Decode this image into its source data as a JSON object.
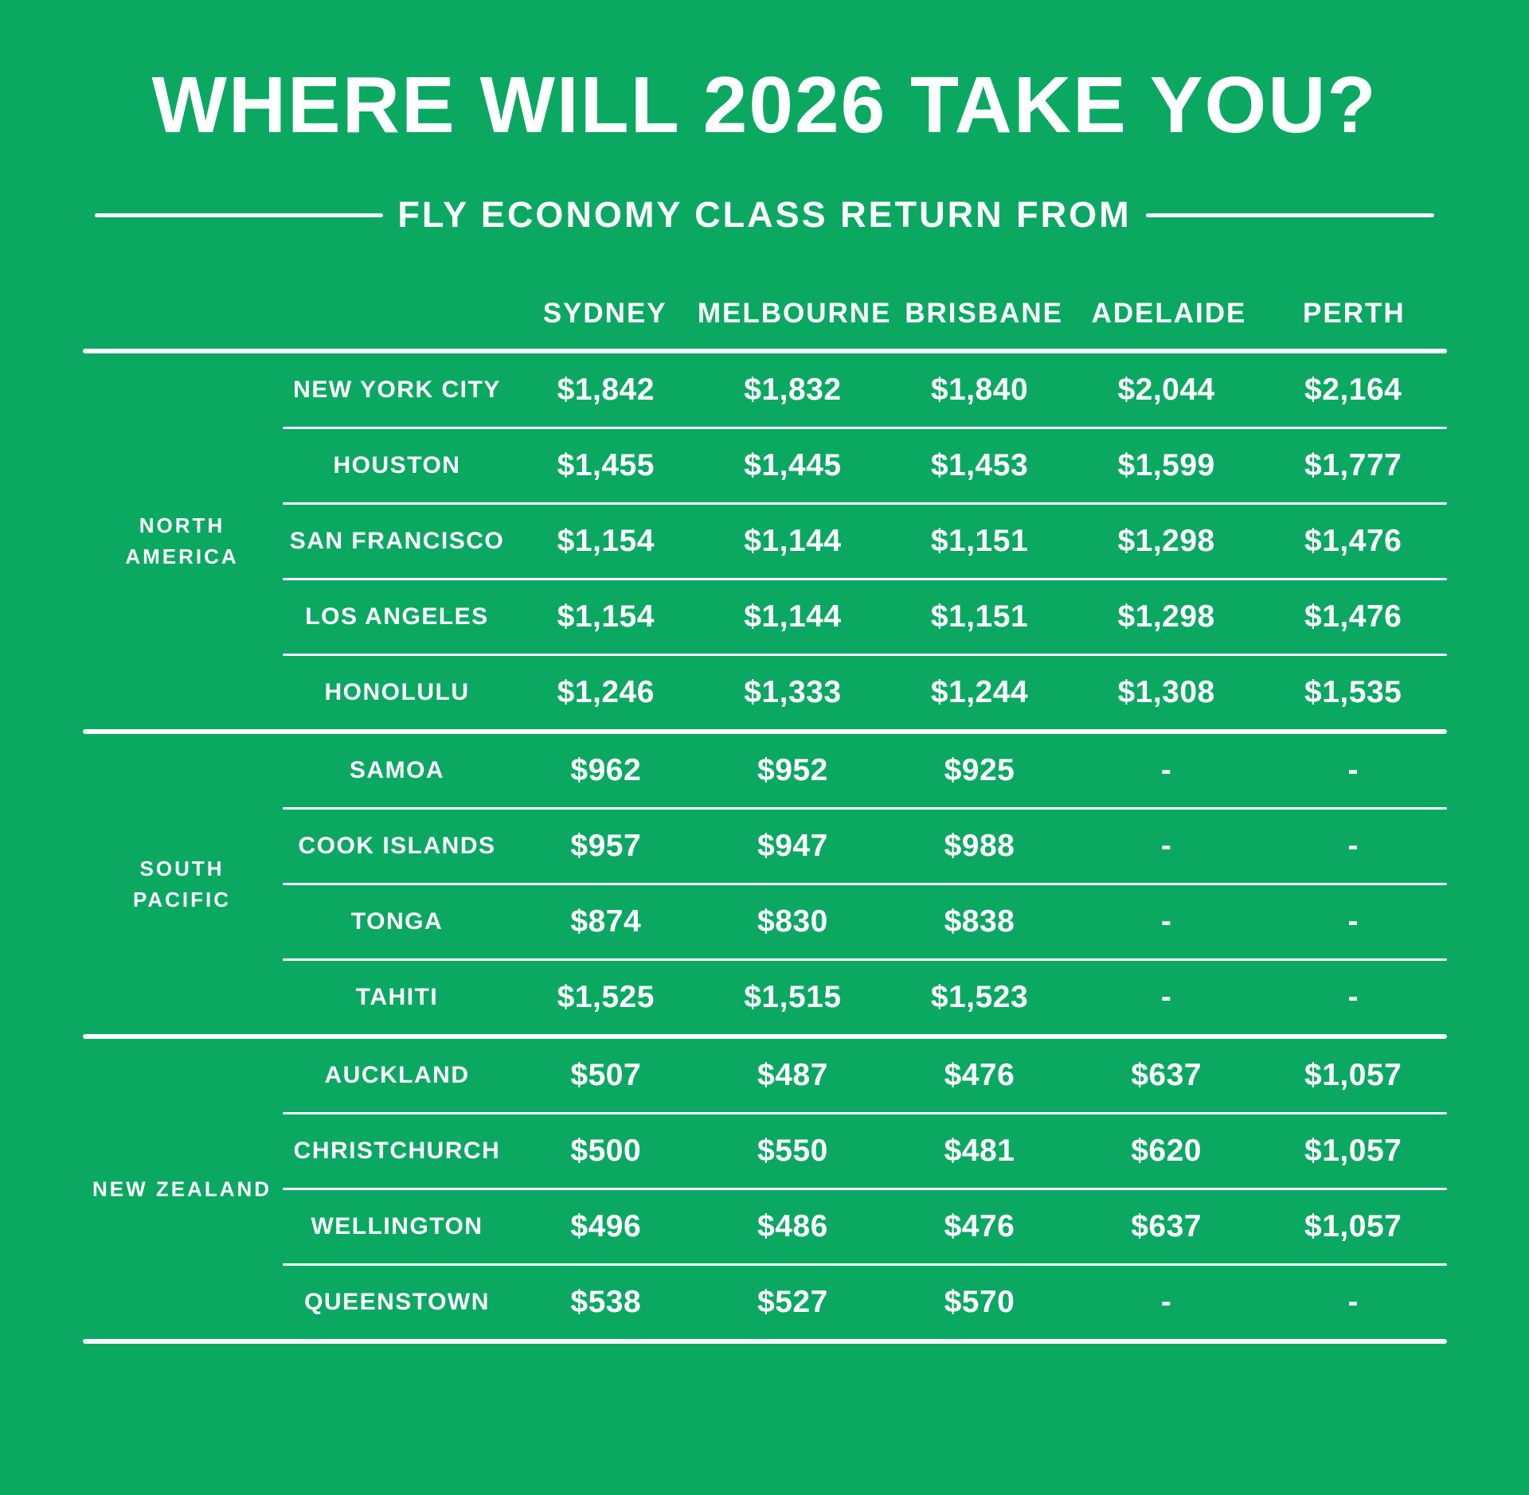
{
  "title": "WHERE WILL 2026 TAKE YOU?",
  "subtitle": "FLY ECONOMY CLASS RETURN FROM",
  "colors": {
    "background": "#0BA862",
    "text": "#FFFFFF",
    "line": "#FFFFFF"
  },
  "table": {
    "origin_columns": [
      "SYDNEY",
      "MELBOURNE",
      "BRISBANE",
      "ADELAIDE",
      "PERTH"
    ],
    "empty_value": "-",
    "groups": [
      {
        "region": "NORTH AMERICA",
        "region_lines": [
          "NORTH",
          "AMERICA"
        ],
        "rows": [
          {
            "destination": "NEW YORK CITY",
            "prices": [
              "$1,842",
              "$1,832",
              "$1,840",
              "$2,044",
              "$2,164"
            ]
          },
          {
            "destination": "HOUSTON",
            "prices": [
              "$1,455",
              "$1,445",
              "$1,453",
              "$1,599",
              "$1,777"
            ]
          },
          {
            "destination": "SAN FRANCISCO",
            "prices": [
              "$1,154",
              "$1,144",
              "$1,151",
              "$1,298",
              "$1,476"
            ]
          },
          {
            "destination": "LOS ANGELES",
            "prices": [
              "$1,154",
              "$1,144",
              "$1,151",
              "$1,298",
              "$1,476"
            ]
          },
          {
            "destination": "HONOLULU",
            "prices": [
              "$1,246",
              "$1,333",
              "$1,244",
              "$1,308",
              "$1,535"
            ]
          }
        ]
      },
      {
        "region": "SOUTH PACIFIC",
        "region_lines": [
          "SOUTH",
          "PACIFIC"
        ],
        "rows": [
          {
            "destination": "SAMOA",
            "prices": [
              "$962",
              "$952",
              "$925",
              "-",
              "-"
            ]
          },
          {
            "destination": "COOK ISLANDS",
            "prices": [
              "$957",
              "$947",
              "$988",
              "-",
              "-"
            ]
          },
          {
            "destination": "TONGA",
            "prices": [
              "$874",
              "$830",
              "$838",
              "-",
              "-"
            ]
          },
          {
            "destination": "TAHITI",
            "prices": [
              "$1,525",
              "$1,515",
              "$1,523",
              "-",
              "-"
            ]
          }
        ]
      },
      {
        "region": "NEW ZEALAND",
        "region_lines": [
          "NEW ZEALAND"
        ],
        "rows": [
          {
            "destination": "AUCKLAND",
            "prices": [
              "$507",
              "$487",
              "$476",
              "$637",
              "$1,057"
            ]
          },
          {
            "destination": "CHRISTCHURCH",
            "prices": [
              "$500",
              "$550",
              "$481",
              "$620",
              "$1,057"
            ]
          },
          {
            "destination": "WELLINGTON",
            "prices": [
              "$496",
              "$486",
              "$476",
              "$637",
              "$1,057"
            ]
          },
          {
            "destination": "QUEENSTOWN",
            "prices": [
              "$538",
              "$527",
              "$570",
              "-",
              "-"
            ]
          }
        ]
      }
    ]
  },
  "chart_data": {
    "type": "table",
    "title": "WHERE WILL 2026 TAKE YOU?",
    "subtitle": "FLY ECONOMY CLASS RETURN FROM",
    "unit": "$",
    "columns": [
      "SYDNEY",
      "MELBOURNE",
      "BRISBANE",
      "ADELAIDE",
      "PERTH"
    ],
    "row_groups": [
      {
        "region": "NORTH AMERICA",
        "rows": [
          {
            "destination": "NEW YORK CITY",
            "values": [
              1842,
              1832,
              1840,
              2044,
              2164
            ]
          },
          {
            "destination": "HOUSTON",
            "values": [
              1455,
              1445,
              1453,
              1599,
              1777
            ]
          },
          {
            "destination": "SAN FRANCISCO",
            "values": [
              1154,
              1144,
              1151,
              1298,
              1476
            ]
          },
          {
            "destination": "LOS ANGELES",
            "values": [
              1154,
              1144,
              1151,
              1298,
              1476
            ]
          },
          {
            "destination": "HONOLULU",
            "values": [
              1246,
              1333,
              1244,
              1308,
              1535
            ]
          }
        ]
      },
      {
        "region": "SOUTH PACIFIC",
        "rows": [
          {
            "destination": "SAMOA",
            "values": [
              962,
              952,
              925,
              null,
              null
            ]
          },
          {
            "destination": "COOK ISLANDS",
            "values": [
              957,
              947,
              988,
              null,
              null
            ]
          },
          {
            "destination": "TONGA",
            "values": [
              874,
              830,
              838,
              null,
              null
            ]
          },
          {
            "destination": "TAHITI",
            "values": [
              1525,
              1515,
              1523,
              null,
              null
            ]
          }
        ]
      },
      {
        "region": "NEW ZEALAND",
        "rows": [
          {
            "destination": "AUCKLAND",
            "values": [
              507,
              487,
              476,
              637,
              1057
            ]
          },
          {
            "destination": "CHRISTCHURCH",
            "values": [
              500,
              550,
              481,
              620,
              1057
            ]
          },
          {
            "destination": "WELLINGTON",
            "values": [
              496,
              486,
              476,
              637,
              1057
            ]
          },
          {
            "destination": "QUEENSTOWN",
            "values": [
              538,
              527,
              570,
              null,
              null
            ]
          }
        ]
      }
    ]
  }
}
